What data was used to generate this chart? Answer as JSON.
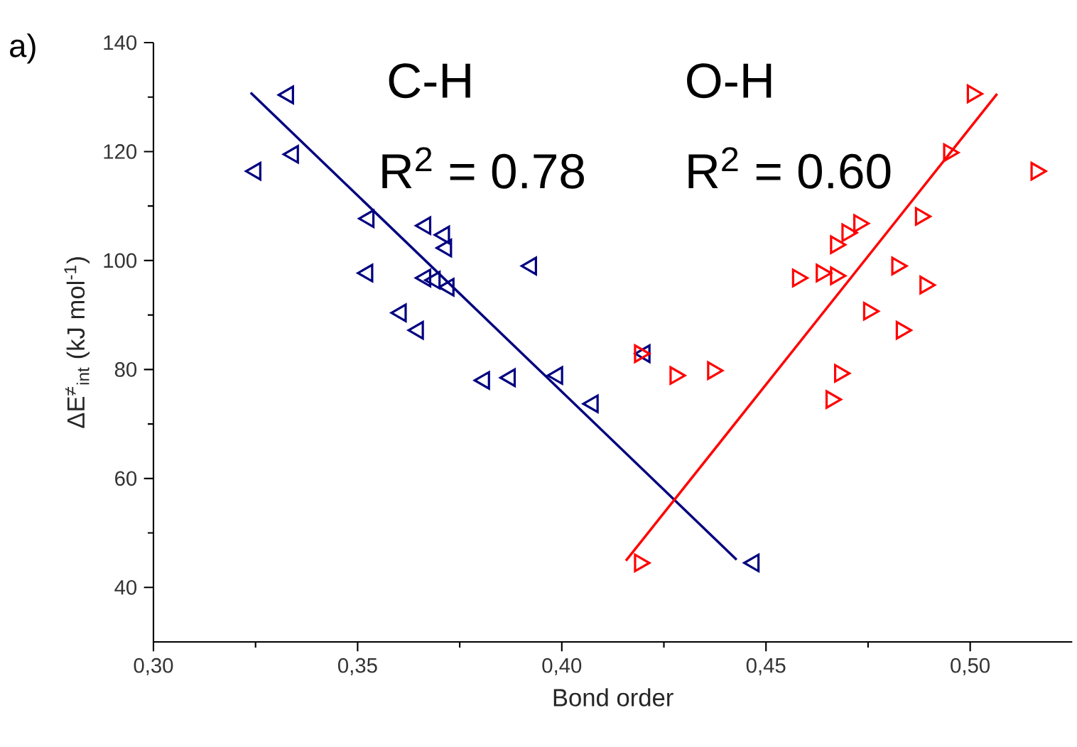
{
  "chart_data": {
    "type": "scatter",
    "xlabel": "Bond order",
    "ylabel": "ΔE$^{≠}$$_{int}$  (kJ mol$^{-1}$)",
    "annotations": [
      "a)",
      "C-H",
      "R$^{2}$ = 0.78",
      "O-H",
      "R$^{2}$ = 0.60"
    ],
    "xlim": [
      0.3,
      0.525
    ],
    "ylim": [
      30,
      140
    ],
    "xticks": [
      {
        "value": 0.3,
        "label": "0,30"
      },
      {
        "value": 0.35,
        "label": "0,35"
      },
      {
        "value": 0.4,
        "label": "0,40"
      },
      {
        "value": 0.45,
        "label": "0,45"
      },
      {
        "value": 0.5,
        "label": "0,50"
      }
    ],
    "yticks": [
      40,
      60,
      80,
      100,
      120,
      140
    ],
    "grid": false,
    "marker": "triangle",
    "series": [
      {
        "color": "#00007f",
        "x": [
          0.333,
          0.3342,
          0.325,
          0.3527,
          0.3666,
          0.3712,
          0.3717,
          0.3524,
          0.3666,
          0.3689,
          0.3723,
          0.3925,
          0.3606,
          0.3648,
          0.381,
          0.3873,
          0.3989,
          0.4076,
          0.4203,
          0.447
        ],
        "values": [
          130.4,
          119.5,
          116.4,
          107.7,
          106.4,
          104.7,
          102.3,
          97.7,
          96.8,
          96.4,
          95.1,
          99.0,
          90.4,
          87.2,
          78.0,
          78.5,
          78.9,
          73.7,
          82.9,
          44.5
        ]
      },
      {
        "color": "#ff0000",
        "x": [
          0.5006,
          0.4948,
          0.5162,
          0.4879,
          0.4728,
          0.4699,
          0.4671,
          0.4821,
          0.4578,
          0.4636,
          0.4671,
          0.489,
          0.4752,
          0.4832,
          0.4191,
          0.4278,
          0.437,
          0.4681,
          0.466,
          0.4191
        ],
        "values": [
          130.6,
          119.8,
          116.4,
          108.1,
          106.8,
          105.1,
          102.9,
          99.0,
          96.8,
          97.7,
          97.2,
          95.5,
          90.7,
          87.2,
          82.9,
          78.9,
          79.8,
          79.3,
          74.5,
          44.5
        ]
      },
      {
        "type": "line",
        "marker": "none",
        "color": "#00007f",
        "x": [
          0.3238,
          0.4428
        ],
        "values": [
          130.8,
          45.1
        ]
      },
      {
        "type": "line",
        "marker": "none",
        "color": "#ff0000",
        "x": [
          0.4157,
          0.5066
        ],
        "values": [
          44.9,
          130.6
        ]
      }
    ]
  }
}
